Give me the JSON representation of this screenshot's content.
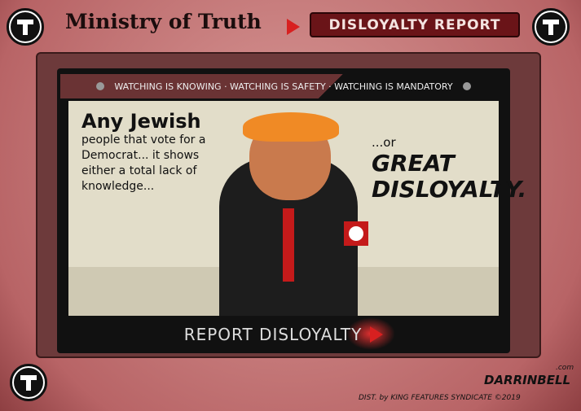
{
  "header": {
    "title": "Ministry of Truth",
    "button_label": "Disloyalty Report"
  },
  "ticker": "WATCHING IS KNOWING · WATCHING IS SAFETY · WATCHING IS MANDATORY",
  "speech_left": {
    "emphasis": "Any Jewish",
    "text": "people that vote for a Democrat... it shows either a total lack of knowledge..."
  },
  "speech_right": {
    "lead": "...or",
    "emphasis": "GREAT DISLOYALTY."
  },
  "footer": {
    "report_label": "REPORT DISLOYALTY",
    "credit": "DIST. by KING FEATURES SYNDICATE ©2019",
    "signature": "DARRINBELL",
    "signature_suffix": ".com"
  },
  "colors": {
    "frame": "#c97f80",
    "button": "#6a1418",
    "accent": "#d82020"
  },
  "icons": [
    "t-symbol-icon",
    "play-icon",
    "screw-icon"
  ]
}
